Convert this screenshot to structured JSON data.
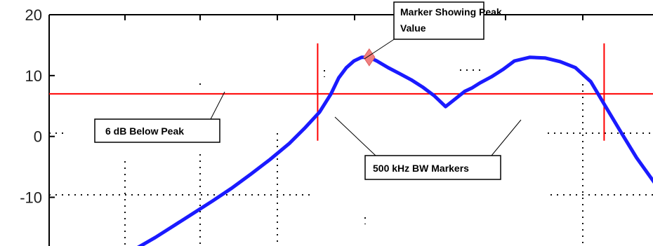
{
  "chart_data": {
    "type": "line",
    "title": "",
    "xlabel": "",
    "ylabel": "",
    "ylim": [
      -18,
      20
    ],
    "y_ticks": [
      20,
      10,
      0,
      -10
    ],
    "y_tick_labels": [
      "20",
      "10",
      "0",
      "-10"
    ],
    "grid": "dotted, partial",
    "series": [
      {
        "color": "#1a1aff",
        "x": [
          0.0,
          0.05,
          0.1,
          0.15,
          0.2,
          0.25,
          0.3,
          0.35,
          0.4,
          0.44,
          0.48,
          0.51,
          0.53,
          0.55,
          0.57,
          0.59,
          0.61,
          0.63,
          0.66,
          0.69,
          0.72,
          0.75,
          0.78,
          0.81,
          0.84,
          0.86,
          0.88,
          0.9,
          0.93,
          0.96,
          0.99,
          1.03,
          1.07,
          1.11,
          1.15,
          1.19,
          1.23,
          1.27,
          1.31,
          1.35,
          1.39,
          1.43,
          1.47,
          1.5
        ],
        "values": [
          -18.4,
          -16.6,
          -14.6,
          -12.6,
          -10.6,
          -8.5,
          -6.2,
          -3.8,
          -1.2,
          1.3,
          4.0,
          7.0,
          9.6,
          11.3,
          12.4,
          13.0,
          13.0,
          12.4,
          11.3,
          10.3,
          9.3,
          8.1,
          6.7,
          4.9,
          6.4,
          7.4,
          8.0,
          8.8,
          9.8,
          11.0,
          12.4,
          13.0,
          12.9,
          12.3,
          11.3,
          9.0,
          4.8,
          0.6,
          -3.5,
          -7.0,
          -10.5,
          -13.7,
          -16.6,
          -18.4
        ]
      }
    ],
    "peak_marker": {
      "x": 0.61,
      "y": 13.0,
      "color": "#f08080"
    },
    "threshold_line": {
      "y": 7.0,
      "color": "#ff0000"
    },
    "bw_markers": {
      "x": [
        0.475,
        1.225
      ],
      "ylim": [
        -0.7,
        15.3
      ],
      "color": "#ff0000"
    }
  },
  "annotations": {
    "peak_label_line1": "Marker Showing Peak",
    "peak_label_line2": "Value",
    "threshold_label": "6 dB Below Peak",
    "bw_label": "500 kHz BW Markers"
  }
}
